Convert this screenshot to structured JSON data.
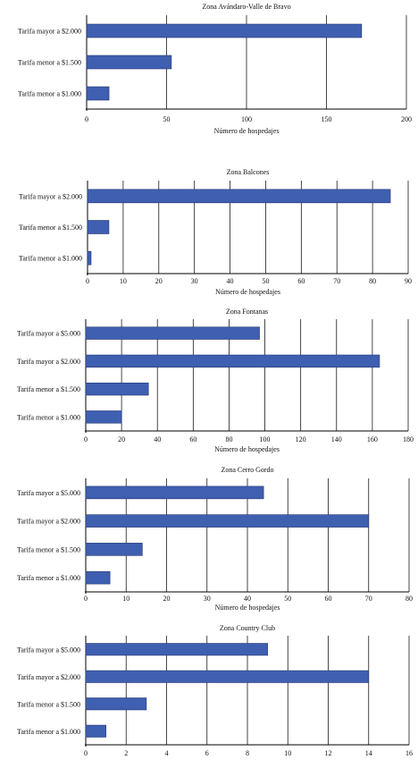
{
  "chart_data": [
    {
      "type": "bar",
      "orientation": "horizontal",
      "title": "Zona Avándaro-Valle de Bravo",
      "xlabel": "Número de hospedajes",
      "ylabel": "",
      "categories": [
        "Tarifa mayor a $2.000",
        "Tarifa menor a $1.500",
        "Tarifa menor a $1.000"
      ],
      "values": [
        172,
        53,
        14
      ],
      "xlim": [
        0,
        200
      ],
      "ticks": [
        0,
        50,
        100,
        150,
        200
      ],
      "grid": "vertical",
      "color": "#3f5fb0"
    },
    {
      "type": "bar",
      "orientation": "horizontal",
      "title": "Zona Balcones",
      "xlabel": "Número de hospedajes",
      "ylabel": "",
      "categories": [
        "Tarifa mayor a $2.000",
        "Tarifa menor a $1.500",
        "Tarifa menor a $1.000"
      ],
      "values": [
        85,
        6,
        1
      ],
      "xlim": [
        0,
        90
      ],
      "ticks": [
        0,
        10,
        20,
        30,
        40,
        50,
        60,
        70,
        80,
        90
      ],
      "grid": "vertical",
      "color": "#3f5fb0"
    },
    {
      "type": "bar",
      "orientation": "horizontal",
      "title": "Zona Fontanas",
      "xlabel": "Número de hospedajes",
      "ylabel": "",
      "categories": [
        "Tarifa mayor a $5.000",
        "Tarifa mayor a $2.000",
        "Tarifa menor a $1.500",
        "Tarifa menor a $1.000"
      ],
      "values": [
        97,
        164,
        35,
        20
      ],
      "xlim": [
        0,
        180
      ],
      "ticks": [
        0,
        20,
        40,
        60,
        80,
        100,
        120,
        140,
        160,
        180
      ],
      "grid": "vertical",
      "color": "#3f5fb0"
    },
    {
      "type": "bar",
      "orientation": "horizontal",
      "title": "Zona Cerro Gordo",
      "xlabel": "Número de hospedajes",
      "ylabel": "",
      "categories": [
        "Tarifa mayor a $5.000",
        "Tarifa mayor a $2.000",
        "Tarifa menor a $1.500",
        "Tarifa menor a $1.000"
      ],
      "values": [
        44,
        70,
        14,
        6
      ],
      "xlim": [
        0,
        80
      ],
      "ticks": [
        0,
        10,
        20,
        30,
        40,
        50,
        60,
        70,
        80
      ],
      "grid": "vertical",
      "color": "#3f5fb0"
    },
    {
      "type": "bar",
      "orientation": "horizontal",
      "title": "Zona Country Club",
      "xlabel": "Número de hospedajes",
      "ylabel": "",
      "categories": [
        "Tarifa mayor a $5.000",
        "Tarifa mayor a $2.000",
        "Tarifa menor a $1.500",
        "Tarifa menor a $1.000"
      ],
      "values": [
        9,
        14,
        3,
        1
      ],
      "xlim": [
        0,
        16
      ],
      "ticks": [
        0,
        2,
        4,
        6,
        8,
        10,
        12,
        14,
        16
      ],
      "grid": "vertical",
      "color": "#3f5fb0"
    }
  ]
}
